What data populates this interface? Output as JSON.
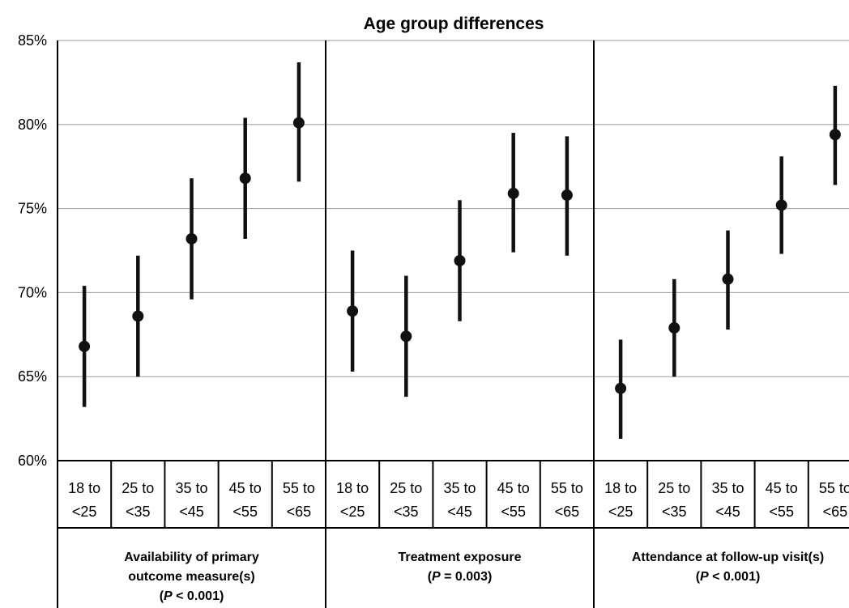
{
  "chart_data": {
    "type": "scatter",
    "title": "Age group differences",
    "ylim": [
      60,
      85
    ],
    "yticks": [
      60,
      65,
      70,
      75,
      80,
      85
    ],
    "ytick_labels": [
      "60%",
      "65%",
      "70%",
      "75%",
      "80%",
      "85%"
    ],
    "grid": "horizontal",
    "categories": [
      [
        "18 to",
        "<25"
      ],
      [
        "25 to",
        "<35"
      ],
      [
        "35 to",
        "<45"
      ],
      [
        "45 to",
        "<55"
      ],
      [
        "55 to",
        "<65"
      ]
    ],
    "groups": [
      {
        "label_lines": [
          "Availability of primary",
          "outcome measure(s)",
          "(P < 0.001)"
        ],
        "values": [
          66.8,
          68.6,
          73.2,
          76.8,
          80.1
        ],
        "lower": [
          63.2,
          65.0,
          69.6,
          73.2,
          76.6
        ],
        "upper": [
          70.4,
          72.2,
          76.8,
          80.4,
          83.7
        ]
      },
      {
        "label_lines": [
          "Treatment exposure",
          "(P = 0.003)"
        ],
        "values": [
          68.9,
          67.4,
          71.9,
          75.9,
          75.8
        ],
        "lower": [
          65.3,
          63.8,
          68.3,
          72.4,
          72.2
        ],
        "upper": [
          72.5,
          71.0,
          75.5,
          79.5,
          79.3
        ]
      },
      {
        "label_lines": [
          "Attendance at follow-up visit(s)",
          "(P < 0.001)"
        ],
        "values": [
          64.3,
          67.9,
          70.8,
          75.2,
          79.4
        ],
        "lower": [
          61.3,
          65.0,
          67.8,
          72.3,
          76.4
        ],
        "upper": [
          67.2,
          70.8,
          73.7,
          78.1,
          82.3
        ]
      }
    ]
  }
}
